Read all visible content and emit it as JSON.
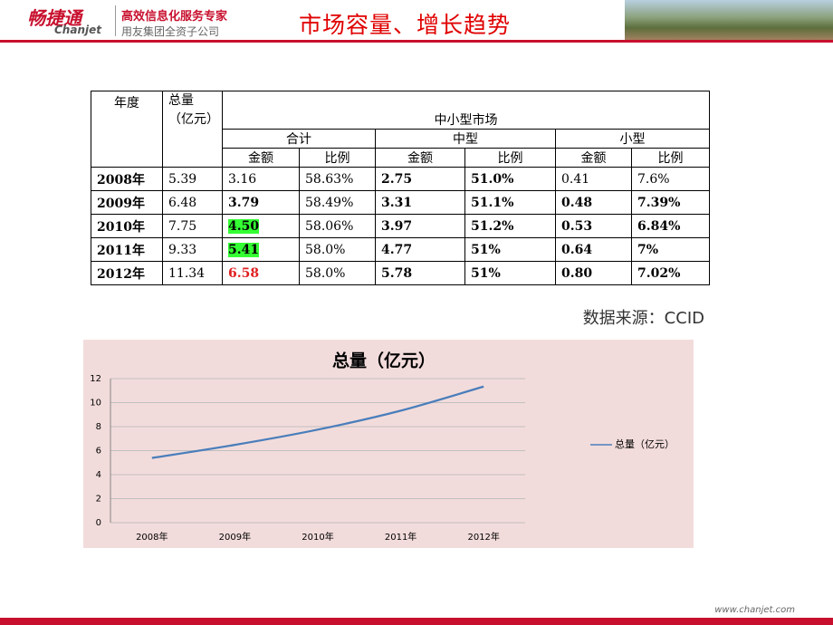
{
  "header": {
    "logo_cn": "畅捷通",
    "logo_en": "Chanjet",
    "slogan": "高效信息化服务专家",
    "subtitle": "用友集团全资子公司",
    "title": "市场容量、增长趋势"
  },
  "table": {
    "head": {
      "year": "年度",
      "total": "总量（亿元）",
      "group": "中小型市场",
      "sub": [
        "合计",
        "中型",
        "小型"
      ],
      "cols": [
        "金额",
        "比例",
        "金额",
        "比例",
        "金额",
        "比例"
      ]
    },
    "rows": [
      [
        "2008年",
        "5.39",
        "3.16",
        "58.63%",
        "2.75",
        "51.0%",
        "0.41",
        "7.6%"
      ],
      [
        "2009年",
        "6.48",
        "3.79",
        "58.49%",
        "3.31",
        "51.1%",
        "0.48",
        "7.39%"
      ],
      [
        "2010年",
        "7.75",
        "4.50",
        "58.06%",
        "3.97",
        "51.2%",
        "0.53",
        "6.84%"
      ],
      [
        "2011年",
        "9.33",
        "5.41",
        "58.0%",
        "4.77",
        "51%",
        "0.64",
        "7%"
      ],
      [
        "2012年",
        "11.34",
        "6.58",
        "58.0%",
        "5.78",
        "51%",
        "0.80",
        "7.02%"
      ]
    ]
  },
  "source": "数据来源：CCID",
  "chart_data": {
    "type": "line",
    "title": "总量（亿元）",
    "categories": [
      "2008年",
      "2009年",
      "2010年",
      "2011年",
      "2012年"
    ],
    "series": [
      {
        "name": "总量（亿元）",
        "color": "#4a7ebb",
        "values": [
          5.39,
          6.48,
          7.75,
          9.33,
          11.34
        ]
      }
    ],
    "ylim": [
      0,
      12
    ],
    "yticks": [
      0,
      2,
      4,
      6,
      8,
      10,
      12
    ],
    "grid": true,
    "legend": "right"
  },
  "footer": "www.chanjet.com"
}
